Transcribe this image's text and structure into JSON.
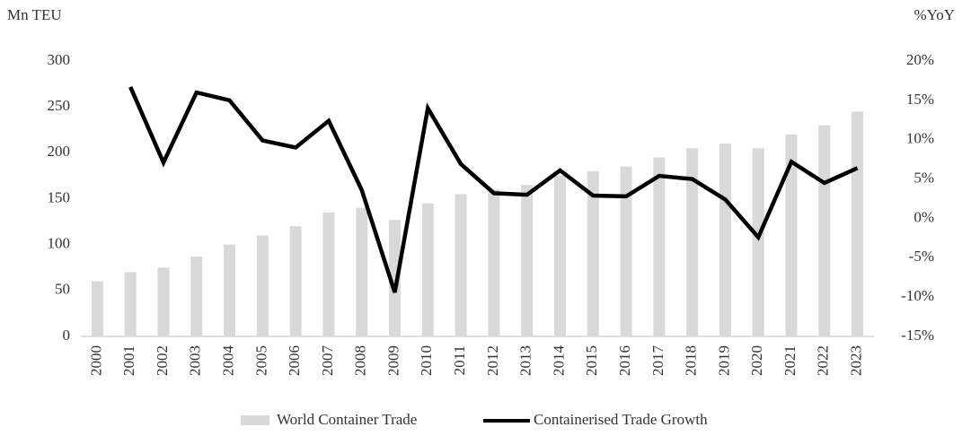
{
  "chart_data": {
    "type": "bar-line",
    "y_label": "Mn TEU",
    "y2_label": "%YoY",
    "categories": [
      "2000",
      "2001",
      "2002",
      "2003",
      "2004",
      "2005",
      "2006",
      "2007",
      "2008",
      "2009",
      "2010",
      "2011",
      "2012",
      "2013",
      "2014",
      "2015",
      "2016",
      "2017",
      "2018",
      "2019",
      "2020",
      "2021",
      "2022",
      "2023"
    ],
    "series": [
      {
        "name": "World Container Trade",
        "type": "bar",
        "color": "#d9d9d9",
        "values": [
          60,
          70,
          75,
          87,
          100,
          110,
          120,
          135,
          140,
          127,
          145,
          155,
          160,
          165,
          175,
          180,
          185,
          195,
          205,
          210,
          205,
          220,
          230,
          245
        ]
      },
      {
        "name": "Containerised Trade Growth",
        "type": "line",
        "color": "#000000",
        "axis": "y2",
        "values": [
          null,
          16.7,
          7.1,
          16.0,
          15.0,
          9.9,
          9.0,
          12.4,
          3.6,
          -9.4,
          14.0,
          6.9,
          3.2,
          3.0,
          6.1,
          2.9,
          2.8,
          5.4,
          5.0,
          2.4,
          -2.4,
          7.2,
          4.5,
          6.4
        ]
      }
    ],
    "ylim": [
      0,
      300
    ],
    "yticks": [
      0,
      50,
      100,
      150,
      200,
      250,
      300
    ],
    "y2lim": [
      -15,
      20
    ],
    "y2ticks": [
      {
        "value": -15,
        "label": "-15%"
      },
      {
        "value": -10,
        "label": "-10%"
      },
      {
        "value": -5,
        "label": "-5%"
      },
      {
        "value": 0,
        "label": "0%"
      },
      {
        "value": 5,
        "label": "5%"
      },
      {
        "value": 10,
        "label": "10%"
      },
      {
        "value": 15,
        "label": "15%"
      },
      {
        "value": 20,
        "label": "20%"
      }
    ],
    "legend": "bottom",
    "grid": false
  }
}
